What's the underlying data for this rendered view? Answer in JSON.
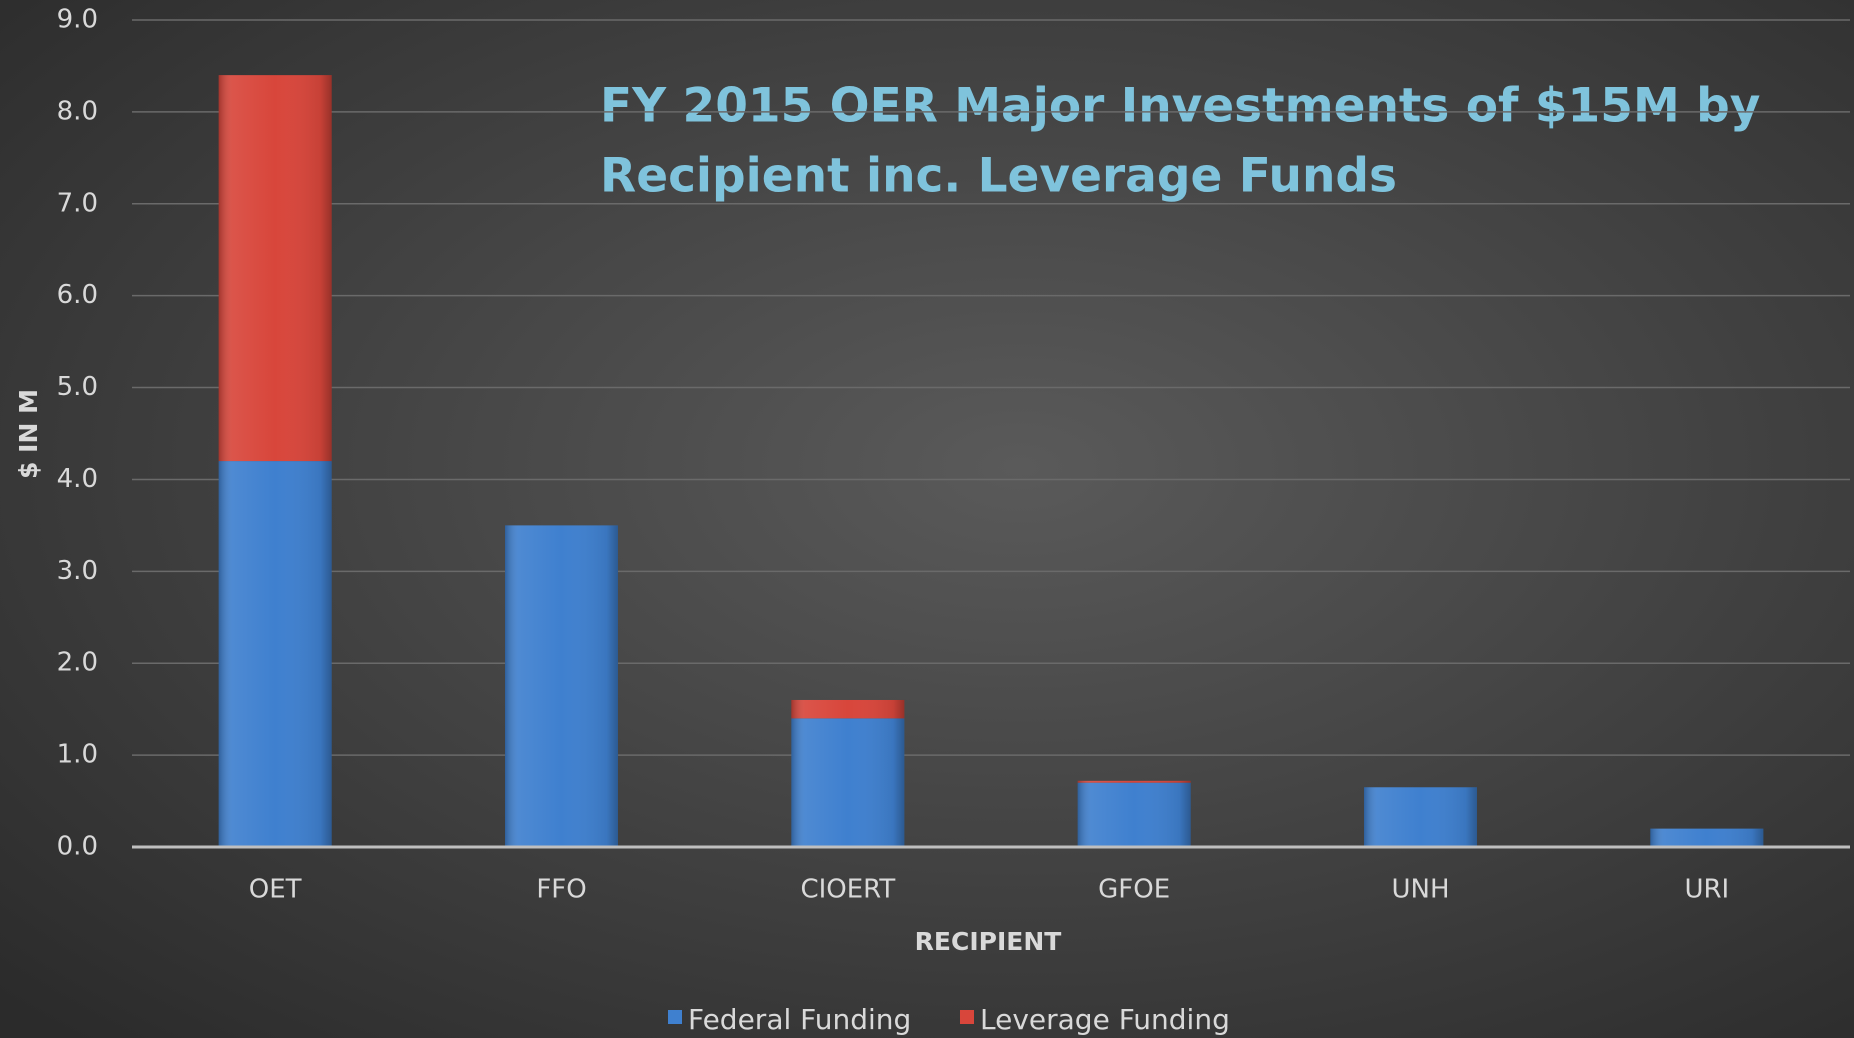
{
  "chart_data": {
    "type": "stacked_bar",
    "title": [
      "FY 2015 OER Major Investments of $15M by",
      "Recipient inc. Leverage Funds"
    ],
    "x_label": "RECIPIENT",
    "y_label": "$ IN M",
    "categories": [
      "OET",
      "FFO",
      "CIOERT",
      "GFOE",
      "UNH",
      "URI"
    ],
    "series": [
      {
        "name": "Federal Funding",
        "color": "#3f80cf",
        "values": [
          4.2,
          3.5,
          1.4,
          0.7,
          0.65,
          0.2
        ]
      },
      {
        "name": "Leverage Funding",
        "color": "#d8463b",
        "values": [
          4.2,
          0,
          0.2,
          0.02,
          0,
          0
        ]
      }
    ],
    "ylim": [
      0,
      9
    ],
    "yticks": [
      {
        "value": 0,
        "label": "0.0"
      },
      {
        "value": 1,
        "label": "1.0"
      },
      {
        "value": 2,
        "label": "2.0"
      },
      {
        "value": 3,
        "label": "3.0"
      },
      {
        "value": 4,
        "label": "4.0"
      },
      {
        "value": 5,
        "label": "5.0"
      },
      {
        "value": 6,
        "label": "6.0"
      },
      {
        "value": 7,
        "label": "7.0"
      },
      {
        "value": 8,
        "label": "8.0"
      },
      {
        "value": 9,
        "label": "9.0"
      }
    ],
    "grid": true,
    "legend": "bottom"
  }
}
